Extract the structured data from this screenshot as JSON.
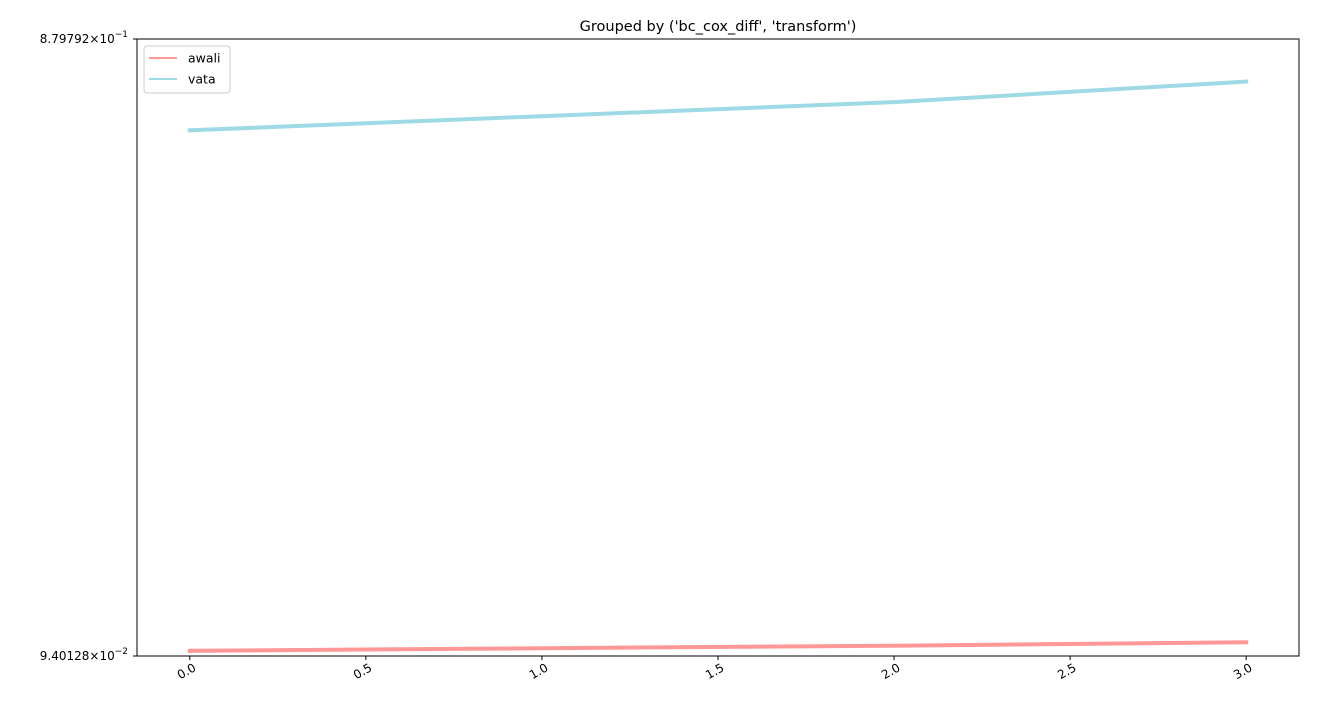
{
  "chart_data": {
    "type": "line",
    "title": "Grouped by ('bc_cox_diff', 'transform')",
    "xlabel": "",
    "ylabel": "",
    "yscale": "log",
    "xlim": [
      -0.15,
      3.15
    ],
    "ylim": [
      0.0940128,
      0.879792
    ],
    "x_ticks": [
      0.0,
      0.5,
      1.0,
      1.5,
      2.0,
      2.5,
      3.0
    ],
    "x_tick_labels": [
      "0.0",
      "0.5",
      "1.0",
      "1.5",
      "2.0",
      "2.5",
      "3.0"
    ],
    "y_tick_labels": [
      {
        "value": 0.879792,
        "mantissa": "8.79792",
        "base": "10",
        "exponent": "−1"
      },
      {
        "value": 0.0940128,
        "mantissa": "9.40128",
        "base": "10",
        "exponent": "−2"
      }
    ],
    "grid": false,
    "legend_position": "upper left",
    "series": [
      {
        "name": "awali",
        "color": "#ff9896",
        "x": [
          0,
          1,
          2,
          3
        ],
        "y": [
          0.0958,
          0.0967,
          0.0976,
          0.0988
        ]
      },
      {
        "name": "vata",
        "color": "#9edae5",
        "x": [
          0,
          1,
          2,
          3
        ],
        "y": [
          0.632,
          0.665,
          0.7,
          0.754
        ]
      }
    ]
  }
}
